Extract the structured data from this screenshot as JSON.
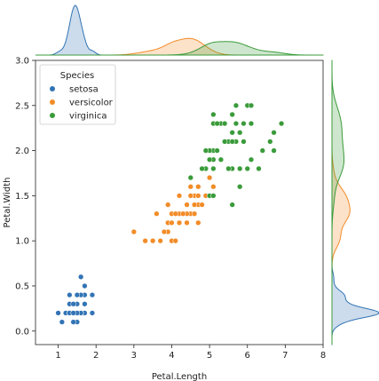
{
  "chart_data": {
    "type": "scatter",
    "title": "",
    "xlabel": "Petal.Length",
    "ylabel": "Petal.Width",
    "xlim": [
      0.4,
      8.0
    ],
    "ylim": [
      -0.15,
      3.0
    ],
    "xticks": [
      1,
      2,
      3,
      4,
      5,
      6,
      7,
      8
    ],
    "yticks": [
      0.0,
      0.5,
      1.0,
      1.5,
      2.0,
      2.5,
      3.0
    ],
    "x_tick_labels": [
      "1",
      "2",
      "3",
      "4",
      "5",
      "6",
      "7",
      "8"
    ],
    "y_tick_labels": [
      "0.0",
      "0.5",
      "1.0",
      "1.5",
      "2.0",
      "2.5",
      "3.0"
    ],
    "grid": false,
    "legend": {
      "title": "Species",
      "placement": "top-left"
    },
    "marginals": {
      "top": "kde",
      "right": "kde"
    },
    "series": [
      {
        "name": "setosa",
        "color": "#3274b5",
        "points": [
          [
            1.4,
            0.2
          ],
          [
            1.4,
            0.2
          ],
          [
            1.3,
            0.2
          ],
          [
            1.5,
            0.2
          ],
          [
            1.4,
            0.2
          ],
          [
            1.7,
            0.4
          ],
          [
            1.4,
            0.3
          ],
          [
            1.5,
            0.2
          ],
          [
            1.4,
            0.2
          ],
          [
            1.5,
            0.1
          ],
          [
            1.5,
            0.2
          ],
          [
            1.6,
            0.2
          ],
          [
            1.4,
            0.1
          ],
          [
            1.1,
            0.1
          ],
          [
            1.2,
            0.2
          ],
          [
            1.5,
            0.4
          ],
          [
            1.3,
            0.4
          ],
          [
            1.4,
            0.3
          ],
          [
            1.7,
            0.3
          ],
          [
            1.5,
            0.3
          ],
          [
            1.7,
            0.2
          ],
          [
            1.5,
            0.4
          ],
          [
            1.0,
            0.2
          ],
          [
            1.7,
            0.5
          ],
          [
            1.9,
            0.2
          ],
          [
            1.6,
            0.2
          ],
          [
            1.6,
            0.4
          ],
          [
            1.5,
            0.2
          ],
          [
            1.4,
            0.2
          ],
          [
            1.6,
            0.2
          ],
          [
            1.6,
            0.2
          ],
          [
            1.5,
            0.4
          ],
          [
            1.5,
            0.1
          ],
          [
            1.4,
            0.2
          ],
          [
            1.5,
            0.2
          ],
          [
            1.2,
            0.2
          ],
          [
            1.3,
            0.2
          ],
          [
            1.4,
            0.1
          ],
          [
            1.3,
            0.2
          ],
          [
            1.5,
            0.2
          ],
          [
            1.3,
            0.3
          ],
          [
            1.3,
            0.3
          ],
          [
            1.3,
            0.2
          ],
          [
            1.6,
            0.6
          ],
          [
            1.9,
            0.4
          ],
          [
            1.4,
            0.3
          ],
          [
            1.6,
            0.2
          ],
          [
            1.4,
            0.2
          ],
          [
            1.5,
            0.2
          ],
          [
            1.4,
            0.2
          ]
        ]
      },
      {
        "name": "versicolor",
        "color": "#f28c28",
        "points": [
          [
            4.7,
            1.4
          ],
          [
            4.5,
            1.5
          ],
          [
            4.9,
            1.5
          ],
          [
            4.0,
            1.3
          ],
          [
            4.6,
            1.5
          ],
          [
            4.5,
            1.3
          ],
          [
            4.7,
            1.6
          ],
          [
            3.3,
            1.0
          ],
          [
            4.6,
            1.3
          ],
          [
            3.9,
            1.4
          ],
          [
            3.5,
            1.0
          ],
          [
            4.2,
            1.5
          ],
          [
            4.0,
            1.0
          ],
          [
            4.7,
            1.4
          ],
          [
            3.6,
            1.3
          ],
          [
            4.4,
            1.4
          ],
          [
            4.5,
            1.5
          ],
          [
            4.1,
            1.0
          ],
          [
            4.5,
            1.5
          ],
          [
            3.9,
            1.1
          ],
          [
            4.8,
            1.8
          ],
          [
            4.0,
            1.3
          ],
          [
            4.9,
            1.5
          ],
          [
            4.7,
            1.2
          ],
          [
            4.3,
            1.3
          ],
          [
            4.4,
            1.4
          ],
          [
            4.8,
            1.4
          ],
          [
            5.0,
            1.7
          ],
          [
            4.5,
            1.5
          ],
          [
            3.5,
            1.0
          ],
          [
            3.8,
            1.1
          ],
          [
            3.7,
            1.0
          ],
          [
            3.9,
            1.2
          ],
          [
            5.1,
            1.6
          ],
          [
            4.5,
            1.5
          ],
          [
            4.5,
            1.6
          ],
          [
            4.7,
            1.5
          ],
          [
            4.4,
            1.3
          ],
          [
            4.1,
            1.3
          ],
          [
            4.0,
            1.3
          ],
          [
            4.4,
            1.2
          ],
          [
            4.6,
            1.4
          ],
          [
            4.0,
            1.2
          ],
          [
            3.3,
            1.0
          ],
          [
            4.2,
            1.3
          ],
          [
            4.2,
            1.2
          ],
          [
            4.2,
            1.3
          ],
          [
            4.3,
            1.3
          ],
          [
            3.0,
            1.1
          ],
          [
            4.1,
            1.3
          ]
        ]
      },
      {
        "name": "virginica",
        "color": "#3a9b3a",
        "points": [
          [
            6.0,
            2.5
          ],
          [
            5.1,
            1.9
          ],
          [
            5.9,
            2.1
          ],
          [
            5.6,
            1.8
          ],
          [
            5.8,
            2.2
          ],
          [
            6.6,
            2.1
          ],
          [
            4.5,
            1.7
          ],
          [
            6.3,
            1.8
          ],
          [
            5.8,
            1.8
          ],
          [
            6.1,
            2.5
          ],
          [
            5.1,
            2.0
          ],
          [
            5.3,
            1.9
          ],
          [
            5.5,
            2.1
          ],
          [
            5.0,
            2.0
          ],
          [
            5.1,
            2.4
          ],
          [
            5.3,
            2.3
          ],
          [
            5.5,
            1.8
          ],
          [
            6.7,
            2.2
          ],
          [
            6.9,
            2.3
          ],
          [
            5.0,
            1.5
          ],
          [
            5.7,
            2.3
          ],
          [
            4.9,
            2.0
          ],
          [
            6.7,
            2.0
          ],
          [
            4.9,
            1.8
          ],
          [
            5.7,
            2.1
          ],
          [
            6.0,
            1.8
          ],
          [
            4.8,
            1.8
          ],
          [
            4.9,
            1.8
          ],
          [
            5.6,
            2.1
          ],
          [
            5.8,
            1.6
          ],
          [
            6.1,
            1.9
          ],
          [
            6.4,
            2.0
          ],
          [
            5.6,
            2.2
          ],
          [
            5.1,
            1.5
          ],
          [
            5.6,
            1.4
          ],
          [
            6.1,
            2.3
          ],
          [
            5.6,
            2.4
          ],
          [
            5.5,
            1.8
          ],
          [
            4.8,
            1.8
          ],
          [
            5.4,
            2.1
          ],
          [
            5.6,
            2.4
          ],
          [
            5.1,
            2.3
          ],
          [
            5.1,
            1.9
          ],
          [
            5.9,
            2.3
          ],
          [
            5.7,
            2.5
          ],
          [
            5.2,
            2.3
          ],
          [
            5.0,
            1.9
          ],
          [
            5.2,
            2.0
          ],
          [
            5.4,
            2.3
          ],
          [
            5.1,
            1.8
          ]
        ]
      }
    ]
  }
}
